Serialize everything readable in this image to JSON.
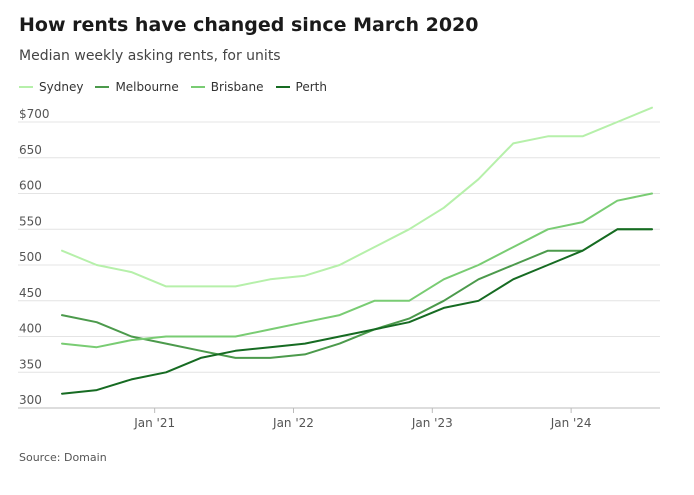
{
  "header": {
    "title": "How rents have changed since March 2020",
    "subtitle": "Median weekly asking rents, for units"
  },
  "footer": {
    "source": "Source: Domain"
  },
  "chart_data": {
    "type": "line",
    "title": "How rents have changed since March 2020",
    "subtitle": "Median weekly asking rents, for units",
    "xlabel": "",
    "ylabel": "",
    "x": [
      "Mar 2020",
      "Jun 2020",
      "Sep 2020",
      "Dec 2020",
      "Mar 2021",
      "Jun 2021",
      "Sep 2021",
      "Dec 2021",
      "Mar 2022",
      "Jun 2022",
      "Sep 2022",
      "Dec 2022",
      "Mar 2023",
      "Jun 2023",
      "Sep 2023",
      "Dec 2023",
      "Mar 2024",
      "Jun 2024"
    ],
    "x_ticks": [
      {
        "label": "Jan '21",
        "index": 2.67
      },
      {
        "label": "Jan '22",
        "index": 6.67
      },
      {
        "label": "Jan '23",
        "index": 10.67
      },
      {
        "label": "Jan '24",
        "index": 14.67
      }
    ],
    "y_ticks": [
      {
        "value": 300,
        "label": "300"
      },
      {
        "value": 350,
        "label": "350"
      },
      {
        "value": 400,
        "label": "400"
      },
      {
        "value": 450,
        "label": "450"
      },
      {
        "value": 500,
        "label": "500"
      },
      {
        "value": 550,
        "label": "550"
      },
      {
        "value": 600,
        "label": "600"
      },
      {
        "value": 650,
        "label": "650"
      },
      {
        "value": 700,
        "label": "$700"
      }
    ],
    "ylim": [
      300,
      720
    ],
    "grid": "horizontal",
    "legend_position": "top-left",
    "series": [
      {
        "name": "Sydney",
        "color": "#b6f0aa",
        "values": [
          520,
          500,
          490,
          470,
          470,
          470,
          480,
          485,
          500,
          525,
          550,
          580,
          620,
          670,
          680,
          680,
          700,
          720
        ]
      },
      {
        "name": "Melbourne",
        "color": "#4c9a4c",
        "values": [
          430,
          420,
          400,
          390,
          380,
          370,
          370,
          375,
          390,
          410,
          425,
          450,
          480,
          500,
          520,
          520,
          550,
          550
        ]
      },
      {
        "name": "Brisbane",
        "color": "#79cc73",
        "values": [
          390,
          385,
          395,
          400,
          400,
          400,
          410,
          420,
          430,
          450,
          450,
          480,
          500,
          525,
          550,
          560,
          590,
          600
        ]
      },
      {
        "name": "Perth",
        "color": "#166b22",
        "values": [
          320,
          325,
          340,
          350,
          370,
          380,
          385,
          390,
          400,
          410,
          420,
          440,
          450,
          480,
          500,
          520,
          550,
          550
        ]
      }
    ]
  }
}
